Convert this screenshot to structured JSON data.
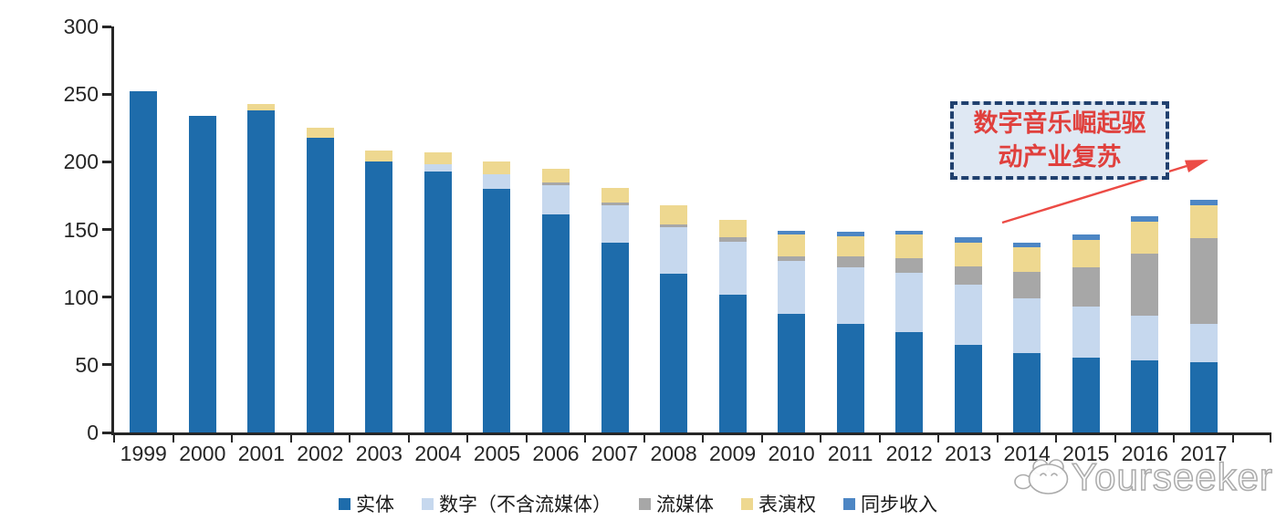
{
  "chart_data": {
    "type": "bar",
    "stacked": true,
    "title": "",
    "xlabel": "",
    "ylabel": "",
    "categories": [
      "1999",
      "2000",
      "2001",
      "2002",
      "2003",
      "2004",
      "2005",
      "2006",
      "2007",
      "2008",
      "2009",
      "2010",
      "2011",
      "2012",
      "2013",
      "2014",
      "2015",
      "2016",
      "2017"
    ],
    "series": [
      {
        "key": "physical",
        "name": "实体",
        "color": "#1e6cab",
        "values": [
          252,
          234,
          238,
          218,
          200,
          193,
          180,
          161,
          140,
          117,
          102,
          88,
          80,
          74,
          65,
          59,
          55,
          53,
          52
        ]
      },
      {
        "key": "digital-excl-streaming",
        "name": "数字（不含流媒体）",
        "color": "#c6d8ee",
        "values": [
          0,
          0,
          0,
          0,
          0,
          5,
          11,
          22,
          28,
          35,
          39,
          39,
          42,
          44,
          44,
          40,
          38,
          33,
          28
        ]
      },
      {
        "key": "streaming",
        "name": "流媒体",
        "color": "#a7a7a7",
        "values": [
          0,
          0,
          0,
          0,
          0,
          0,
          0,
          2,
          2,
          2,
          3,
          3,
          8,
          11,
          14,
          20,
          29,
          46,
          64
        ]
      },
      {
        "key": "performance-rights",
        "name": "表演权",
        "color": "#eed890",
        "values": [
          0,
          0,
          5,
          7,
          8,
          9,
          9,
          10,
          11,
          14,
          13,
          16,
          15,
          17,
          17,
          18,
          20,
          24,
          24
        ]
      },
      {
        "key": "sync-revenue",
        "name": "同步收入",
        "color": "#4d86c4",
        "values": [
          0,
          0,
          0,
          0,
          0,
          0,
          0,
          0,
          0,
          0,
          0,
          3,
          3,
          3,
          4,
          3,
          4,
          4,
          4
        ]
      }
    ],
    "ylim": [
      0,
      300
    ],
    "yticks": [
      0,
      50,
      100,
      150,
      200,
      250,
      300
    ],
    "grid": false,
    "legend_position": "bottom"
  },
  "annotation": {
    "line1": "数字音乐崛起驱",
    "line2": "动产业复苏",
    "box_fill": "#dfe8f3",
    "border_color": "#20406e",
    "text_color": "#e0403d",
    "arrow_color": "#ec4b45"
  },
  "watermark": {
    "text": "Yourseeker",
    "logo": "cloud-mascot-logo"
  },
  "axis": {
    "color": "#262626"
  }
}
